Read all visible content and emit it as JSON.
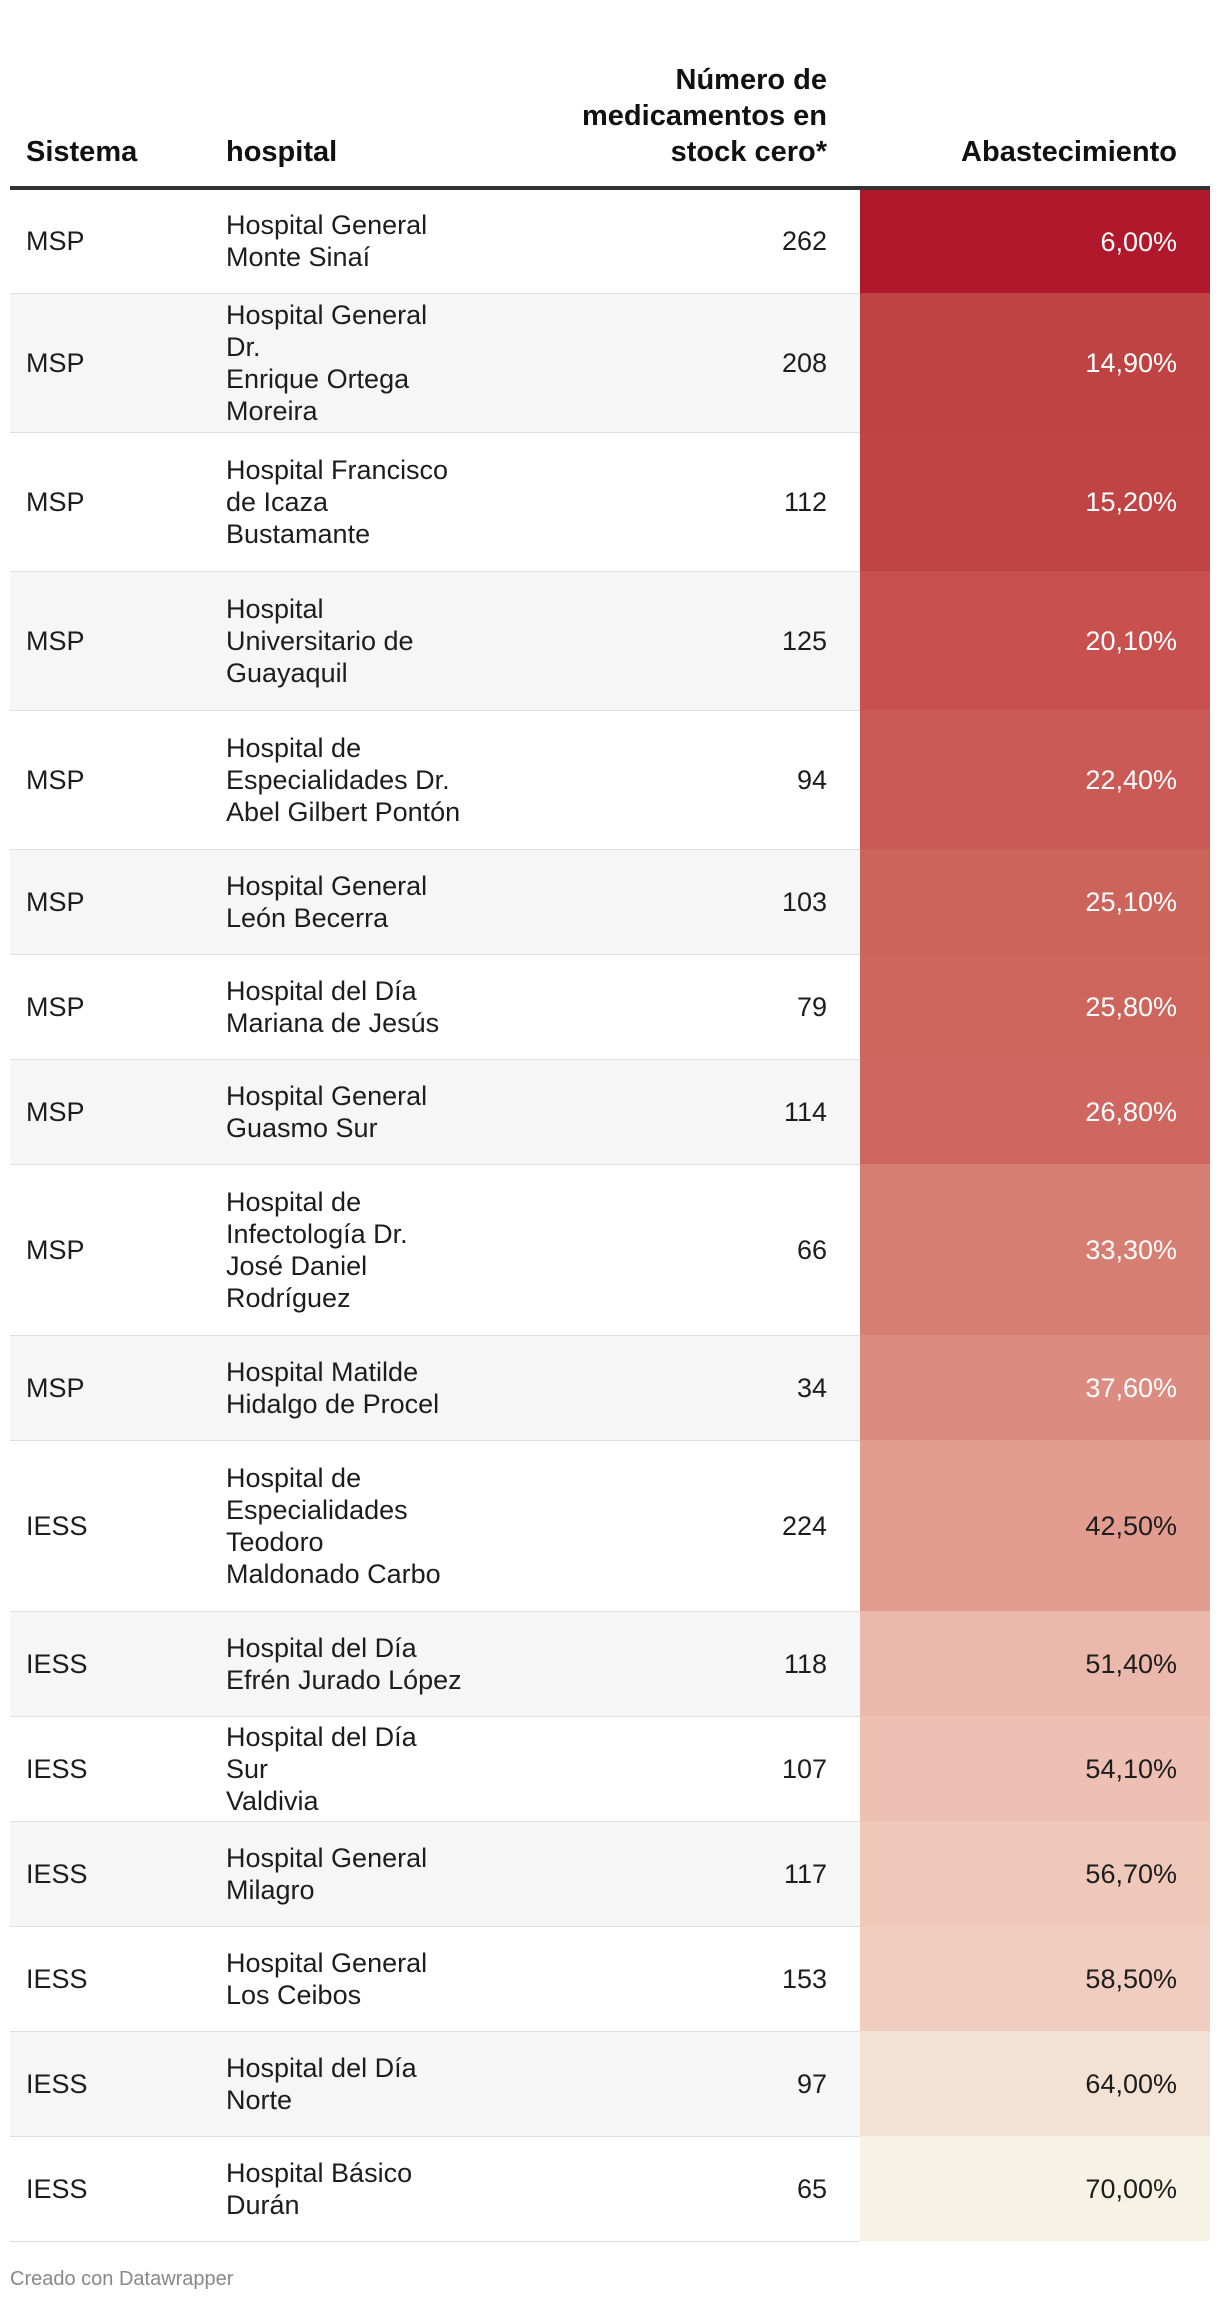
{
  "chart_data": {
    "type": "table",
    "columns": [
      "Sistema",
      "hospital",
      "Número de medicamentos en stock cero*",
      "Abastecimiento"
    ],
    "header_num_lines": [
      "Número de",
      "medicamentos en",
      "stock cero*"
    ],
    "rows": [
      {
        "sistema": "MSP",
        "hospital": [
          "Hospital General",
          "Monte Sinaí"
        ],
        "stock_cero": "262",
        "abastecimiento": "6,00%",
        "value": 6.0,
        "color": "#b2182b",
        "text_color": "#ffffff"
      },
      {
        "sistema": "MSP",
        "hospital": [
          "Hospital General Dr.",
          "Enrique Ortega",
          "Moreira"
        ],
        "stock_cero": "208",
        "abastecimiento": "14,90%",
        "value": 14.9,
        "color": "#c04343",
        "text_color": "#ffffff"
      },
      {
        "sistema": "MSP",
        "hospital": [
          "Hospital Francisco",
          "de Icaza",
          "Bustamante"
        ],
        "stock_cero": "112",
        "abastecimiento": "15,20%",
        "value": 15.2,
        "color": "#c14444",
        "text_color": "#ffffff"
      },
      {
        "sistema": "MSP",
        "hospital": [
          "Hospital",
          "Universitario de",
          "Guayaquil"
        ],
        "stock_cero": "125",
        "abastecimiento": "20,10%",
        "value": 20.1,
        "color": "#c85150",
        "text_color": "#ffffff"
      },
      {
        "sistema": "MSP",
        "hospital": [
          "Hospital de",
          "Especialidades Dr.",
          "Abel Gilbert Pontón"
        ],
        "stock_cero": "94",
        "abastecimiento": "22,40%",
        "value": 22.4,
        "color": "#cb5a56",
        "text_color": "#ffffff"
      },
      {
        "sistema": "MSP",
        "hospital": [
          "Hospital General",
          "León Becerra"
        ],
        "stock_cero": "103",
        "abastecimiento": "25,10%",
        "value": 25.1,
        "color": "#cd645c",
        "text_color": "#ffffff"
      },
      {
        "sistema": "MSP",
        "hospital": [
          "Hospital del Día",
          "Mariana de Jesús"
        ],
        "stock_cero": "79",
        "abastecimiento": "25,80%",
        "value": 25.8,
        "color": "#ce655d",
        "text_color": "#ffffff"
      },
      {
        "sistema": "MSP",
        "hospital": [
          "Hospital General",
          "Guasmo Sur"
        ],
        "stock_cero": "114",
        "abastecimiento": "26,80%",
        "value": 26.8,
        "color": "#cf6760",
        "text_color": "#ffffff"
      },
      {
        "sistema": "MSP",
        "hospital": [
          "Hospital de",
          "Infectología Dr.",
          "José Daniel",
          "Rodríguez"
        ],
        "stock_cero": "66",
        "abastecimiento": "33,30%",
        "value": 33.3,
        "color": "#d77e73",
        "text_color": "#ffffff"
      },
      {
        "sistema": "MSP",
        "hospital": [
          "Hospital Matilde",
          "Hidalgo de Procel"
        ],
        "stock_cero": "34",
        "abastecimiento": "37,60%",
        "value": 37.6,
        "color": "#dc8b80",
        "text_color": "#ffffff"
      },
      {
        "sistema": "IESS",
        "hospital": [
          "Hospital de",
          "Especialidades",
          "Teodoro",
          "Maldonado Carbo"
        ],
        "stock_cero": "224",
        "abastecimiento": "42,50%",
        "value": 42.5,
        "color": "#e39c90",
        "text_color": "#1d1d1d"
      },
      {
        "sistema": "IESS",
        "hospital": [
          "Hospital del Día",
          "Efrén Jurado López"
        ],
        "stock_cero": "118",
        "abastecimiento": "51,40%",
        "value": 51.4,
        "color": "#ebb9ac",
        "text_color": "#1d1d1d"
      },
      {
        "sistema": "IESS",
        "hospital": [
          "Hospital del Día Sur",
          "Valdivia"
        ],
        "stock_cero": "107",
        "abastecimiento": "54,10%",
        "value": 54.1,
        "color": "#edc0b3",
        "text_color": "#1d1d1d"
      },
      {
        "sistema": "IESS",
        "hospital": [
          "Hospital General",
          "Milagro"
        ],
        "stock_cero": "117",
        "abastecimiento": "56,70%",
        "value": 56.7,
        "color": "#efc8ba",
        "text_color": "#1d1d1d"
      },
      {
        "sistema": "IESS",
        "hospital": [
          "Hospital General",
          "Los Ceibos"
        ],
        "stock_cero": "153",
        "abastecimiento": "58,50%",
        "value": 58.5,
        "color": "#f0cdbf",
        "text_color": "#1d1d1d"
      },
      {
        "sistema": "IESS",
        "hospital": [
          "Hospital del Día",
          "Norte"
        ],
        "stock_cero": "97",
        "abastecimiento": "64,00%",
        "value": 64.0,
        "color": "#f3e1d3",
        "text_color": "#1d1d1d"
      },
      {
        "sistema": "IESS",
        "hospital": [
          "Hospital Básico",
          "Durán"
        ],
        "stock_cero": "65",
        "abastecimiento": "70,00%",
        "value": 70.0,
        "color": "#f6f3e5",
        "text_color": "#1d1d1d"
      }
    ]
  },
  "footer": "Creado con Datawrapper"
}
